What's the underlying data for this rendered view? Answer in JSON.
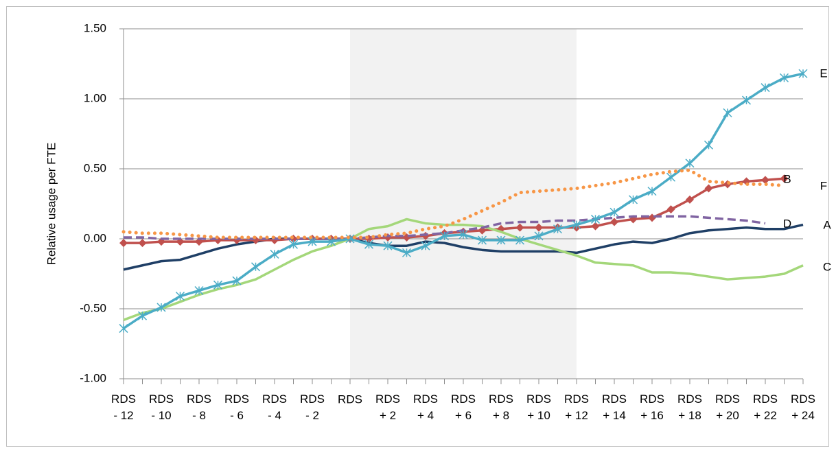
{
  "chart_data": {
    "type": "line",
    "y_label": "Relative usage per FTE",
    "categories": [
      "RDS\n- 12",
      null,
      "RDS\n- 10",
      null,
      "RDS\n- 8",
      null,
      "RDS\n- 6",
      null,
      "RDS\n- 4",
      null,
      "RDS\n- 2",
      null,
      "RDS",
      null,
      "RDS\n+ 2",
      null,
      "RDS\n+ 4",
      null,
      "RDS\n+ 6",
      null,
      "RDS\n+ 8",
      null,
      "RDS\n+ 10",
      null,
      "RDS\n+ 12",
      null,
      "RDS\n+ 14",
      null,
      "RDS\n+ 16",
      null,
      "RDS\n+ 18",
      null,
      "RDS\n+ 20",
      null,
      "RDS\n+ 22",
      null,
      "RDS\n+ 24"
    ],
    "ylim": [
      -1.0,
      1.5
    ],
    "yticks": [
      {
        "value": -1.0,
        "label": "-1.00"
      },
      {
        "value": -0.5,
        "label": "-0.50"
      },
      {
        "value": 0,
        "label": "0.00"
      },
      {
        "value": 0.5,
        "label": "0.50"
      },
      {
        "value": 1.0,
        "label": "1.00"
      },
      {
        "value": 1.5,
        "label": "1.50"
      }
    ],
    "grid": true,
    "series": [
      {
        "name": "A",
        "color": "#1f3f66",
        "line_style": "solid",
        "marker": "none",
        "values": [
          -0.22,
          -0.19,
          -0.16,
          -0.15,
          -0.11,
          -0.07,
          -0.04,
          -0.02,
          0.0,
          0.0,
          0.0,
          0.0,
          0.0,
          -0.03,
          -0.05,
          -0.05,
          -0.02,
          -0.03,
          -0.06,
          -0.08,
          -0.09,
          -0.09,
          -0.09,
          -0.09,
          -0.1,
          -0.07,
          -0.04,
          -0.02,
          -0.03,
          0.0,
          0.04,
          0.06,
          0.07,
          0.08,
          0.07,
          0.07,
          0.1
        ]
      },
      {
        "name": "B",
        "color": "#c0504d",
        "line_style": "solid",
        "marker": "diamond",
        "values": [
          -0.03,
          -0.03,
          -0.02,
          -0.02,
          -0.02,
          -0.01,
          -0.01,
          -0.01,
          -0.01,
          0.0,
          0.0,
          0.0,
          0.0,
          0.0,
          0.01,
          0.01,
          0.02,
          0.04,
          0.05,
          0.06,
          0.07,
          0.08,
          0.08,
          0.08,
          0.08,
          0.09,
          0.12,
          0.14,
          0.15,
          0.21,
          0.28,
          0.36,
          0.39,
          0.41,
          0.42,
          0.43,
          null
        ]
      },
      {
        "name": "C",
        "color": "#a4d77a",
        "line_style": "solid",
        "marker": "none",
        "values": [
          -0.58,
          -0.53,
          -0.5,
          -0.45,
          -0.4,
          -0.36,
          -0.33,
          -0.29,
          -0.22,
          -0.15,
          -0.09,
          -0.05,
          0.0,
          0.07,
          0.09,
          0.14,
          0.11,
          0.1,
          0.1,
          0.09,
          0.05,
          0.0,
          -0.04,
          -0.08,
          -0.12,
          -0.17,
          -0.18,
          -0.19,
          -0.24,
          -0.24,
          -0.25,
          -0.27,
          -0.29,
          -0.28,
          -0.27,
          -0.25,
          -0.19
        ]
      },
      {
        "name": "D",
        "color": "#8064a2",
        "line_style": "dashed",
        "marker": "none",
        "values": [
          0.01,
          0.01,
          0.0,
          0.0,
          0.0,
          0.0,
          0.0,
          0.0,
          0.0,
          0.0,
          0.0,
          0.0,
          0.0,
          0.01,
          0.02,
          0.02,
          0.03,
          0.04,
          0.06,
          0.08,
          0.11,
          0.12,
          0.12,
          0.13,
          0.13,
          0.14,
          0.15,
          0.16,
          0.16,
          0.16,
          0.16,
          0.15,
          0.14,
          0.13,
          0.11,
          null,
          null
        ]
      },
      {
        "name": "E",
        "color": "#4bacc6",
        "line_style": "solid",
        "marker": "asterisk",
        "values": [
          -0.64,
          -0.55,
          -0.49,
          -0.41,
          -0.37,
          -0.33,
          -0.3,
          -0.2,
          -0.11,
          -0.04,
          -0.02,
          -0.02,
          0.0,
          -0.04,
          -0.05,
          -0.1,
          -0.05,
          0.02,
          0.03,
          -0.01,
          -0.01,
          -0.01,
          0.02,
          0.07,
          0.1,
          0.14,
          0.19,
          0.28,
          0.34,
          0.44,
          0.54,
          0.67,
          0.9,
          0.99,
          1.08,
          1.15,
          1.18
        ]
      },
      {
        "name": "F",
        "color": "#f79646",
        "line_style": "dotted",
        "marker": "none",
        "values": [
          0.05,
          0.04,
          0.04,
          0.03,
          0.02,
          0.01,
          0.01,
          0.01,
          0.01,
          0.01,
          0.01,
          0.01,
          0.01,
          0.01,
          0.03,
          0.04,
          0.07,
          0.09,
          0.14,
          0.2,
          0.26,
          0.33,
          0.34,
          0.35,
          0.36,
          0.38,
          0.4,
          0.43,
          0.46,
          0.48,
          0.49,
          0.41,
          0.4,
          0.39,
          0.39,
          0.38,
          null
        ]
      }
    ]
  }
}
